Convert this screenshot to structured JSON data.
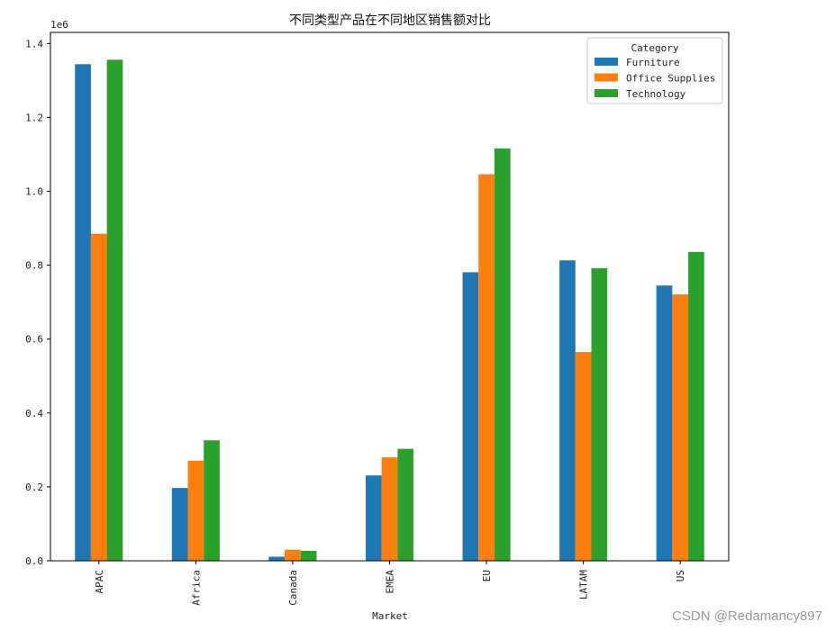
{
  "chart_data": {
    "type": "bar",
    "title": "不同类型产品在不同地区销售额对比",
    "xlabel": "Market",
    "ylabel": "",
    "scale_note": "1e6",
    "categories": [
      "APAC",
      "Africa",
      "Canada",
      "EMEA",
      "EU",
      "LATAM",
      "US"
    ],
    "series": [
      {
        "name": "Furniture",
        "color": "#1f77b4",
        "values": [
          1344000,
          197000,
          11000,
          231000,
          781000,
          813000,
          745000
        ]
      },
      {
        "name": "Office Supplies",
        "color": "#ff7f0e",
        "values": [
          885000,
          271000,
          30000,
          280000,
          1046000,
          565000,
          721000
        ]
      },
      {
        "name": "Technology",
        "color": "#2ca02c",
        "values": [
          1356000,
          326000,
          27000,
          303000,
          1116000,
          792000,
          836000
        ]
      }
    ],
    "ylim": [
      0,
      1430000
    ],
    "yticks": [
      0,
      200000,
      400000,
      600000,
      800000,
      1000000,
      1200000,
      1400000
    ],
    "ytick_labels": [
      "0.0",
      "0.2",
      "0.4",
      "0.6",
      "0.8",
      "1.0",
      "1.2",
      "1.4"
    ],
    "legend": {
      "title": "Category",
      "placement": "top-right"
    },
    "grid": false
  },
  "watermark": "CSDN @Redamancy897"
}
